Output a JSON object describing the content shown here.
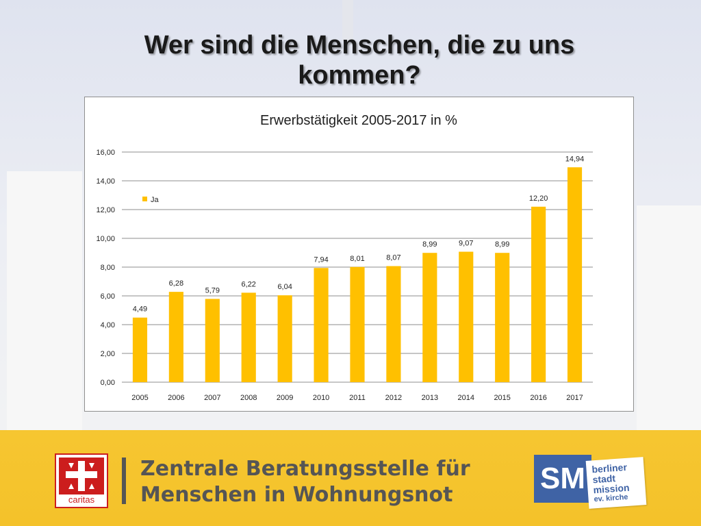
{
  "slide": {
    "title_line1": "Wer sind die Menschen, die zu uns",
    "title_line2": "kommen?"
  },
  "footer": {
    "caritas_label": "caritas",
    "org_line1": "Zentrale Beratungsstelle für",
    "org_line2": "Menschen in Wohnungsnot",
    "sm_label": "SM",
    "partner_lines": [
      "berliner",
      "stadt",
      "mission",
      "ev. kirche"
    ]
  },
  "colors": {
    "bar": "#FFC000",
    "footer_band": "#F6C631",
    "caritas_red": "#CC1D1D",
    "sm_blue": "#3F63A5"
  },
  "chart_data": {
    "type": "bar",
    "title": "Erwerbstätigkeit 2005-2017 in %",
    "categories": [
      "2005",
      "2006",
      "2007",
      "2008",
      "2009",
      "2010",
      "2011",
      "2012",
      "2013",
      "2014",
      "2015",
      "2016",
      "2017"
    ],
    "series": [
      {
        "name": "Ja",
        "values": [
          4.49,
          6.28,
          5.79,
          6.22,
          6.04,
          7.94,
          8.01,
          8.07,
          8.99,
          9.07,
          8.99,
          12.2,
          14.94
        ],
        "labels": [
          "4,49",
          "6,28",
          "5,79",
          "6,22",
          "6,04",
          "7,94",
          "8,01",
          "8,07",
          "8,99",
          "9,07",
          "8,99",
          "12,20",
          "14,94"
        ]
      }
    ],
    "yticks": [
      "0,00",
      "2,00",
      "4,00",
      "6,00",
      "8,00",
      "10,00",
      "12,00",
      "14,00",
      "16,00"
    ],
    "ylim": [
      0,
      16
    ],
    "grid": true,
    "legend_position": "upper-left"
  }
}
